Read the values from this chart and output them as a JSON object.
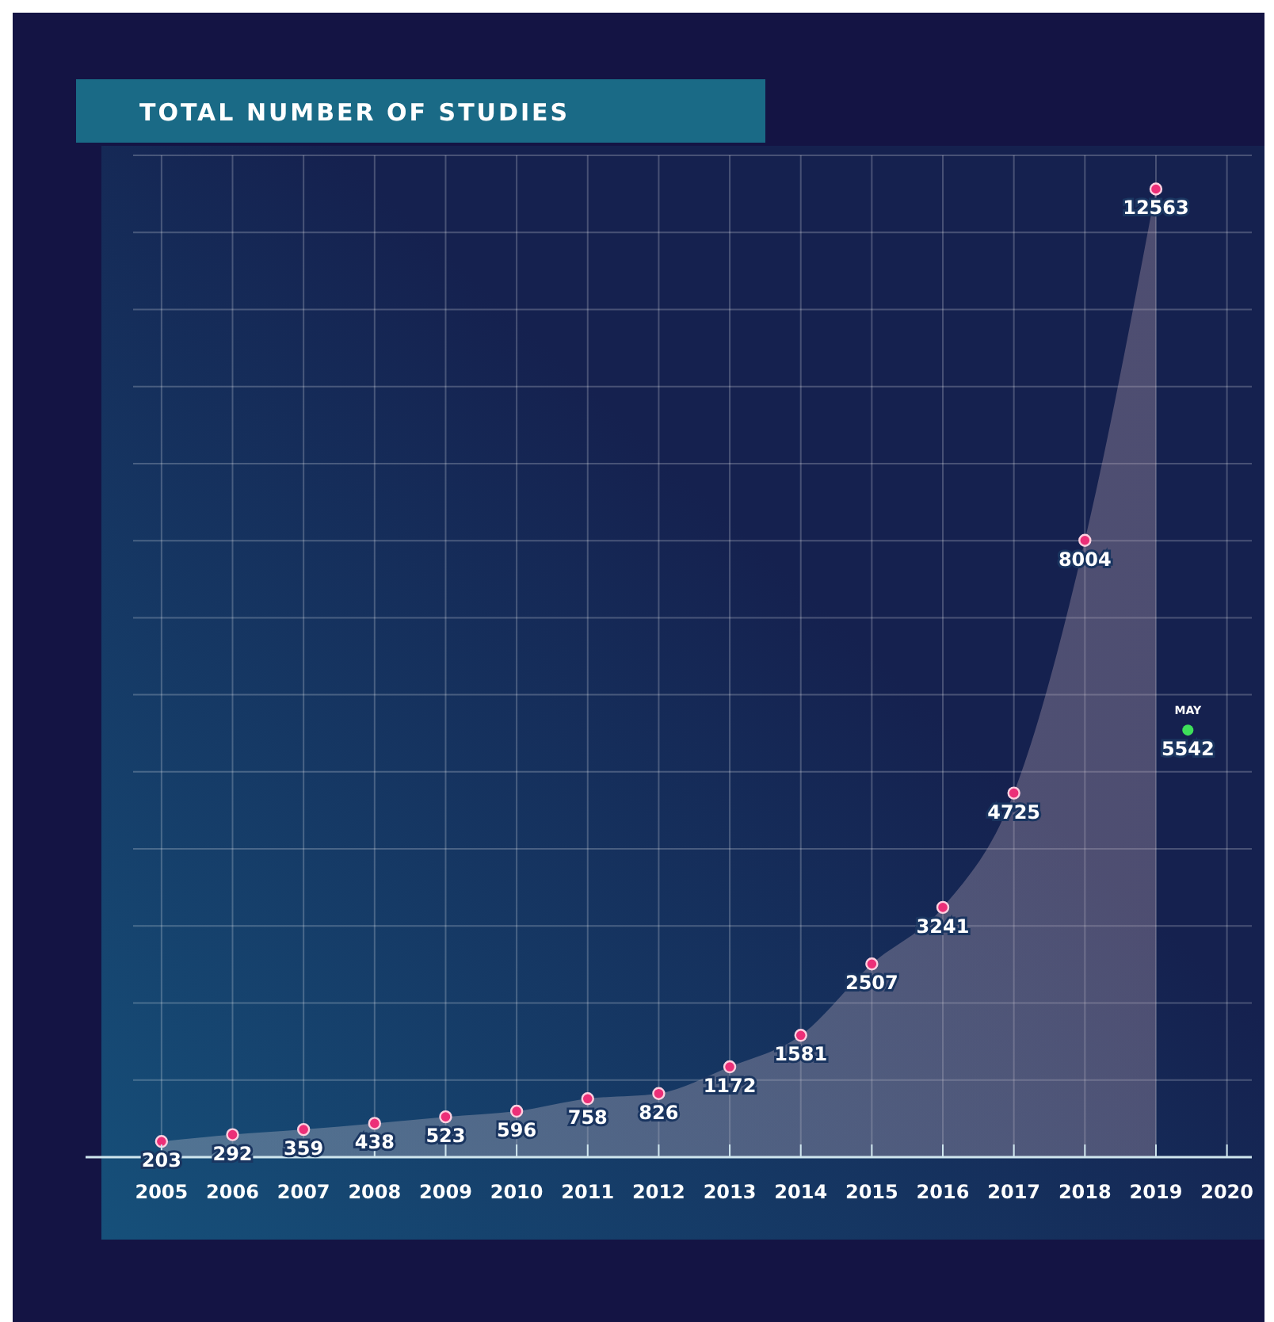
{
  "chart_data": {
    "type": "area",
    "title": "TOTAL NUMBER OF STUDIES",
    "xlim": [
      2004.6,
      2020.35
    ],
    "xticks": [
      2005,
      2006,
      2007,
      2008,
      2009,
      2010,
      2011,
      2012,
      2013,
      2014,
      2015,
      2016,
      2017,
      2018,
      2019,
      2020
    ],
    "ylim": [
      0,
      13000
    ],
    "yticks": [
      {
        "value": 0,
        "label": null
      },
      {
        "value": 1000,
        "label": null
      },
      {
        "value": 2000,
        "label": null
      },
      {
        "value": 3000,
        "label": null
      },
      {
        "value": 4000,
        "label": null
      },
      {
        "value": 5000,
        "label": null
      },
      {
        "value": 6000,
        "label": null
      },
      {
        "value": 7000,
        "label": null
      },
      {
        "value": 8000,
        "label": null
      },
      {
        "value": 9000,
        "label": null
      },
      {
        "value": 10000,
        "label": null
      },
      {
        "value": 11000,
        "label": null
      },
      {
        "value": 12000,
        "label": null
      },
      {
        "value": 13000,
        "label": null
      }
    ],
    "tick_labels": "x",
    "grid": true,
    "data_labels": true,
    "marker": "circle",
    "series": [
      {
        "color": "#ec2f78",
        "x": [
          2005,
          2006,
          2007,
          2008,
          2009,
          2010,
          2011,
          2012,
          2013,
          2014,
          2015,
          2016,
          2017,
          2018,
          2019
        ],
        "values": [
          203,
          292,
          359,
          438,
          523,
          596,
          758,
          826,
          1172,
          1581,
          2507,
          3241,
          4725,
          8004,
          12563
        ]
      },
      {
        "type": "scatter",
        "color": "#3ee05a",
        "x": [
          2019.45
        ],
        "values": [
          5542
        ]
      }
    ],
    "annotations": [
      {
        "text": "MAY",
        "x": 2019.45,
        "y": 5542
      }
    ]
  }
}
